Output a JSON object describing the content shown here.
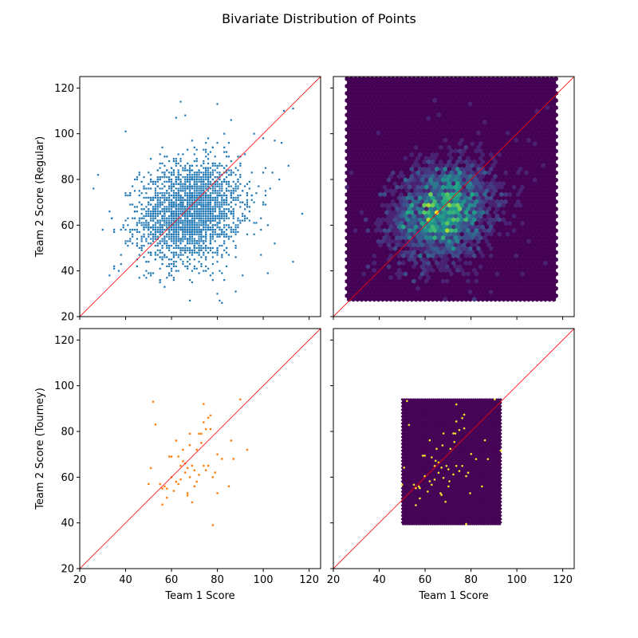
{
  "figure": {
    "title": "Bivariate Distribution of Points"
  },
  "colors": {
    "regular_points": "#1f77b4",
    "tourney_points": "#ff7f0e",
    "diagonal": "#ff0000",
    "hex_low": "#440154",
    "hex_mid": "#21918c",
    "hex_high": "#fde725"
  },
  "chart_data": [
    {
      "id": "scatter-regular",
      "type": "scatter",
      "row": "regular",
      "xlabel": "",
      "ylabel": "Team 2 Score (Regular)",
      "xlim": [
        20,
        125
      ],
      "ylim": [
        20,
        125
      ],
      "xticks": [
        20,
        40,
        60,
        80,
        100,
        120
      ],
      "yticks": [
        20,
        40,
        60,
        80,
        100,
        120
      ],
      "show_xticklabels": false,
      "show_yticklabels": true,
      "reference_line": "y = x",
      "distribution": {
        "n": 2600,
        "mean_x": 68,
        "mean_y": 66,
        "sd_x": 11,
        "sd_y": 11,
        "corr": 0.15
      },
      "outliers": [
        [
          64,
          114
        ],
        [
          80,
          113
        ],
        [
          109,
          110
        ],
        [
          113,
          111
        ],
        [
          40,
          101
        ],
        [
          62,
          107
        ],
        [
          66,
          108
        ],
        [
          96,
          100
        ],
        [
          100,
          98
        ],
        [
          105,
          97
        ],
        [
          104,
          83
        ],
        [
          107,
          80
        ],
        [
          111,
          86
        ],
        [
          117,
          65
        ],
        [
          113,
          44
        ],
        [
          102,
          39
        ],
        [
          105,
          52
        ],
        [
          99,
          47
        ],
        [
          26,
          76
        ],
        [
          28,
          82
        ],
        [
          30,
          58
        ],
        [
          35,
          57
        ],
        [
          37,
          40
        ],
        [
          38,
          47
        ],
        [
          40,
          53
        ],
        [
          68,
          27
        ],
        [
          80,
          30
        ],
        [
          81,
          27
        ],
        [
          82,
          26
        ],
        [
          88,
          31
        ],
        [
          57,
          33
        ],
        [
          55,
          36
        ],
        [
          48,
          38
        ],
        [
          102,
          60
        ],
        [
          101,
          75
        ]
      ]
    },
    {
      "id": "hexbin-regular",
      "type": "heatmap",
      "row": "regular",
      "xlabel": "",
      "ylabel": "",
      "xlim": [
        20,
        125
      ],
      "ylim": [
        20,
        125
      ],
      "xticks": [
        20,
        40,
        60,
        80,
        100,
        120
      ],
      "yticks": [
        20,
        40,
        60,
        80,
        100,
        120
      ],
      "show_xticklabels": false,
      "show_yticklabels": false,
      "extent": {
        "x": [
          26,
          117
        ],
        "y": [
          26,
          124
        ]
      },
      "gridsize": 50,
      "colormap": "viridis",
      "reference_line": "y = x",
      "density_peak": [
        67,
        66
      ]
    },
    {
      "id": "scatter-tourney",
      "type": "scatter",
      "row": "tourney",
      "xlabel": "Team 1 Score",
      "ylabel": "Team 2 Score (Tourney)",
      "xlim": [
        20,
        125
      ],
      "ylim": [
        20,
        125
      ],
      "xticks": [
        20,
        40,
        60,
        80,
        100,
        120
      ],
      "yticks": [
        20,
        40,
        60,
        80,
        100,
        120
      ],
      "show_xticklabels": true,
      "show_yticklabels": true,
      "reference_line": "y = x",
      "points": [
        [
          51,
          64
        ],
        [
          50,
          57
        ],
        [
          52,
          93
        ],
        [
          53,
          83
        ],
        [
          55,
          57
        ],
        [
          56,
          55
        ],
        [
          56,
          48
        ],
        [
          57,
          56
        ],
        [
          58,
          51
        ],
        [
          59,
          69
        ],
        [
          60,
          69
        ],
        [
          60,
          60
        ],
        [
          61,
          54
        ],
        [
          62,
          76
        ],
        [
          62,
          58
        ],
        [
          63,
          69
        ],
        [
          63,
          57
        ],
        [
          64,
          65
        ],
        [
          64,
          59
        ],
        [
          65,
          67
        ],
        [
          65,
          72
        ],
        [
          66,
          66
        ],
        [
          66,
          62
        ],
        [
          67,
          64
        ],
        [
          67,
          52
        ],
        [
          67,
          53
        ],
        [
          68,
          74
        ],
        [
          68,
          79
        ],
        [
          68,
          60
        ],
        [
          69,
          49
        ],
        [
          69,
          65
        ],
        [
          70,
          56
        ],
        [
          70,
          63
        ],
        [
          71,
          72
        ],
        [
          71,
          58
        ],
        [
          72,
          61
        ],
        [
          72,
          79
        ],
        [
          73,
          75
        ],
        [
          73,
          79
        ],
        [
          74,
          92
        ],
        [
          74,
          84
        ],
        [
          74,
          65
        ],
        [
          75,
          81
        ],
        [
          75,
          63
        ],
        [
          76,
          86
        ],
        [
          76,
          65
        ],
        [
          77,
          81
        ],
        [
          77,
          87
        ],
        [
          78,
          39
        ],
        [
          78,
          60
        ],
        [
          79,
          62
        ],
        [
          80,
          53
        ],
        [
          80,
          70
        ],
        [
          82,
          68
        ],
        [
          85,
          56
        ],
        [
          86,
          76
        ],
        [
          87,
          68
        ],
        [
          90,
          94
        ],
        [
          93,
          72
        ],
        [
          58,
          55
        ]
      ]
    },
    {
      "id": "hexbin-tourney",
      "type": "heatmap",
      "row": "tourney",
      "xlabel": "Team 1 Score",
      "ylabel": "",
      "xlim": [
        20,
        125
      ],
      "ylim": [
        20,
        125
      ],
      "xticks": [
        20,
        40,
        60,
        80,
        100,
        120
      ],
      "yticks": [
        20,
        40,
        60,
        80,
        100,
        120
      ],
      "show_xticklabels": true,
      "show_yticklabels": false,
      "extent": {
        "x": [
          50,
          93
        ],
        "y": [
          39,
          94
        ]
      },
      "gridsize": 50,
      "colormap": "viridis",
      "reference_line": "y = x"
    }
  ]
}
